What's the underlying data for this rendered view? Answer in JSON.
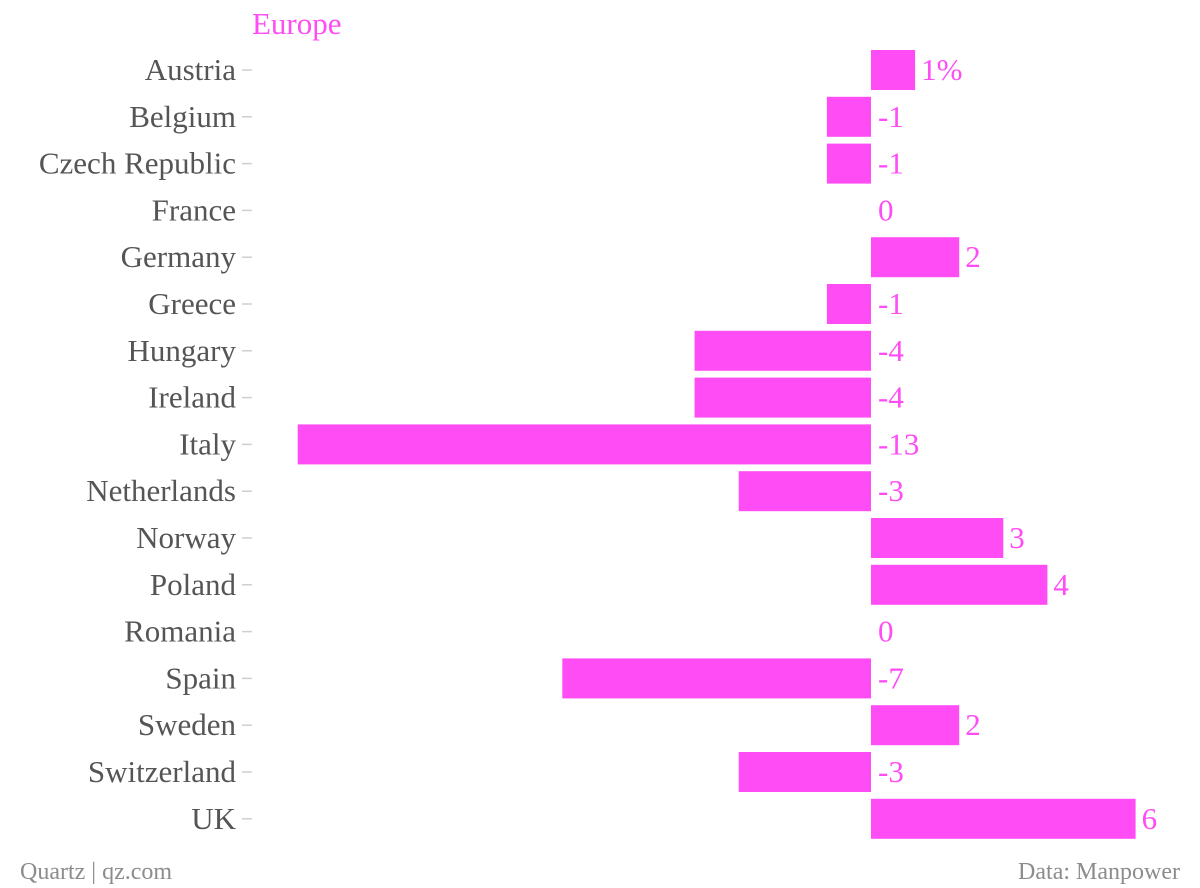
{
  "chart_data": {
    "type": "bar",
    "orientation": "horizontal",
    "title": "Europe",
    "categories": [
      "Austria",
      "Belgium",
      "Czech Republic",
      "France",
      "Germany",
      "Greece",
      "Hungary",
      "Ireland",
      "Italy",
      "Netherlands",
      "Norway",
      "Poland",
      "Romania",
      "Spain",
      "Sweden",
      "Switzerland",
      "UK"
    ],
    "values": [
      1,
      -1,
      -1,
      0,
      2,
      -1,
      -4,
      -4,
      -13,
      -3,
      3,
      4,
      0,
      -7,
      2,
      -3,
      6
    ],
    "value_labels": [
      "1%",
      "-1",
      "-1",
      "0",
      "2",
      "-1",
      "-4",
      "-4",
      "-13",
      "-3",
      "3",
      "4",
      "0",
      "-7",
      "2",
      "-3",
      "6"
    ],
    "xlim": [
      -13,
      6
    ],
    "grid": false,
    "legend": "none",
    "colors": {
      "bar": "#ff4cf5",
      "title": "#ff4cf5",
      "value_label": "#ff4cf5",
      "category_label": "#555555",
      "tick": "#cfcfcf"
    }
  },
  "footer": {
    "source": "Quartz | qz.com",
    "credit": "Data: Manpower"
  }
}
